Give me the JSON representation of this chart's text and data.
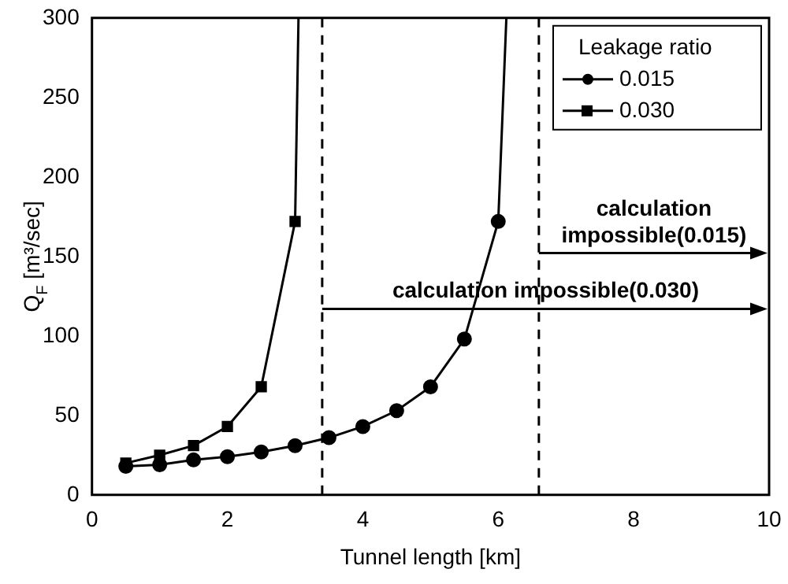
{
  "chart_data": {
    "type": "line",
    "xlabel": "Tunnel length [km]",
    "ylabel": "Q$_{F}$ [m³/sec]",
    "legend_title": "Leakage ratio",
    "legend": "top right",
    "grid": false,
    "line_style": "solid",
    "xlim": [
      0,
      10
    ],
    "xticks": [
      0,
      2,
      4,
      6,
      8,
      10
    ],
    "ylim": [
      0,
      300
    ],
    "yticks": [
      0,
      50,
      100,
      150,
      200,
      250,
      300
    ],
    "series": [
      {
        "name": "0.015",
        "color": "#000000",
        "marker": "circle",
        "x": [
          0.5,
          1,
          1.5,
          2,
          2.5,
          3,
          3.5,
          4,
          4.5,
          5,
          5.5,
          6,
          6.12
        ],
        "values": [
          18,
          19,
          22,
          24,
          27,
          31,
          36,
          43,
          53,
          68,
          98,
          172,
          300
        ]
      },
      {
        "name": "0.030",
        "color": "#000000",
        "marker": "square",
        "x": [
          0.5,
          1,
          1.5,
          2,
          2.5,
          3,
          3.05
        ],
        "values": [
          20,
          25,
          31,
          43,
          68,
          172,
          300
        ]
      }
    ],
    "ref_lines": [
      {
        "axis": "x",
        "value": 6.6,
        "line_style": "dashed"
      },
      {
        "axis": "x",
        "value": 3.4,
        "line_style": "dashed"
      }
    ],
    "annotations": [
      "calculation impossible(0.015)",
      "calculation impossible(0.030)"
    ]
  }
}
